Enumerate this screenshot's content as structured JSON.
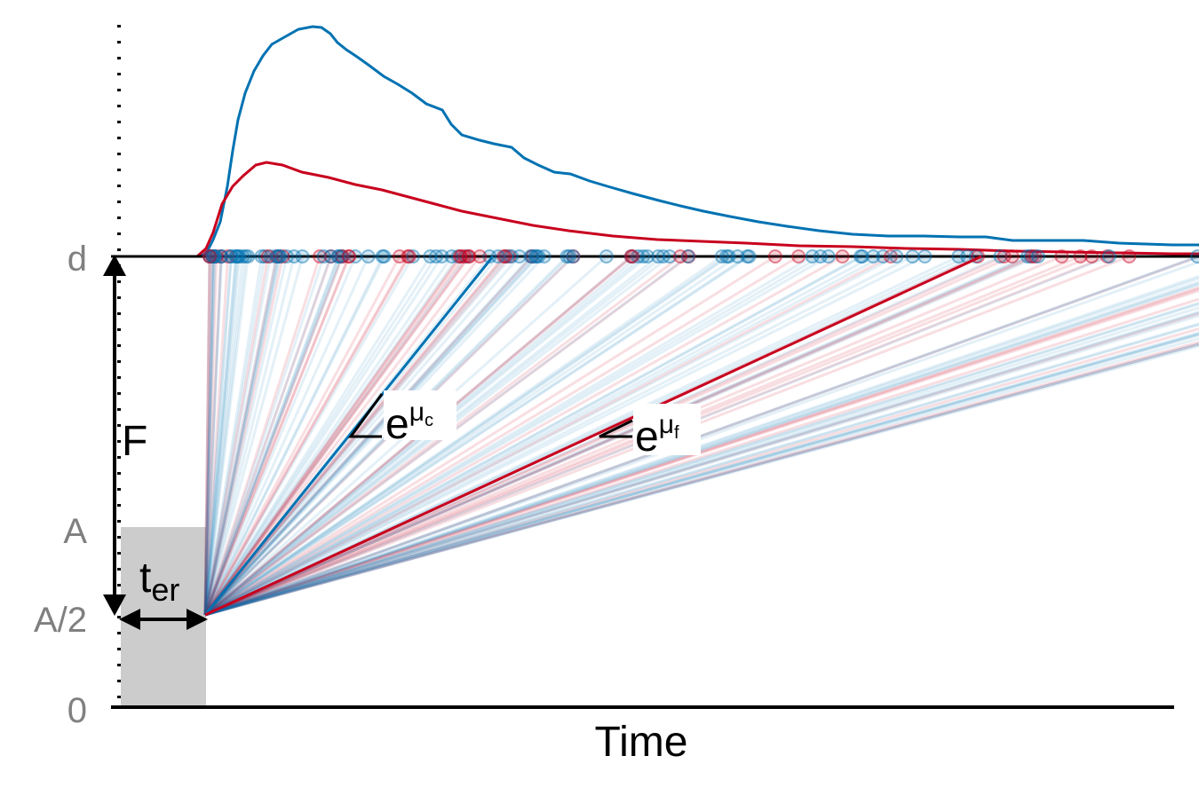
{
  "chart_data": {
    "type": "diagram",
    "xlabel": "Time",
    "yticks": [
      "d",
      "A",
      "A/2",
      "0"
    ],
    "annotations": {
      "threshold_distance": "F",
      "nondecision_base": "t",
      "nondecision_sub": "er",
      "drift_correct_base": "e",
      "drift_correct_sup": "μ",
      "drift_correct_sub": "c",
      "drift_fast_base": "e",
      "drift_fast_sup": "μ",
      "drift_fast_sub": "f"
    },
    "series": [
      {
        "color": "#0072B2"
      },
      {
        "color": "#C8001E"
      }
    ]
  }
}
